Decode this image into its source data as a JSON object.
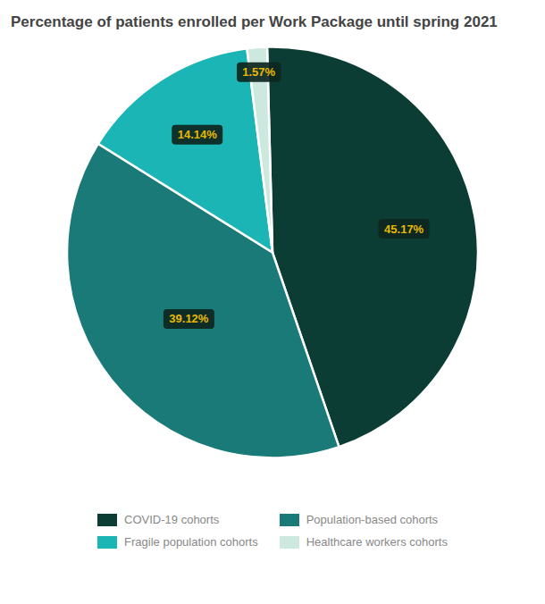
{
  "chart_data": {
    "type": "pie",
    "title": "Percentage of patients enrolled per Work Package until spring 2021",
    "categories": [
      "COVID-19 cohorts",
      "Population-based cohorts",
      "Fragile population cohorts",
      "Healthcare workers cohorts"
    ],
    "values": [
      45.17,
      39.12,
      14.14,
      1.57
    ],
    "value_labels": [
      "45.17%",
      "39.12%",
      "14.14%",
      "1.57%"
    ],
    "colors": [
      "#0b3d35",
      "#1a7a78",
      "#1bb5b5",
      "#cde8df"
    ],
    "data_labels": true,
    "legend": "bottom"
  }
}
